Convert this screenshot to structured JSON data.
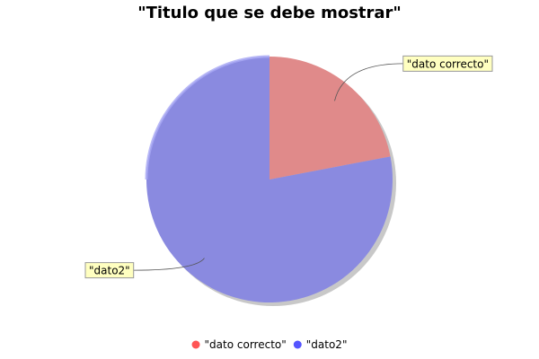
{
  "chart_data": {
    "type": "pie",
    "title": "\"Titulo que se debe mostrar\"",
    "categories": [
      "\"dato correcto\"",
      "\"dato2\""
    ],
    "values": [
      22,
      78
    ],
    "colors": [
      "#e08a8a",
      "#8a8ae0"
    ],
    "legend_colors": [
      "#ff5555",
      "#5555ff"
    ],
    "legend_placement": "bottom",
    "labels_shown": true,
    "shadow": true,
    "start_angle_deg": 90,
    "direction": "clockwise"
  }
}
